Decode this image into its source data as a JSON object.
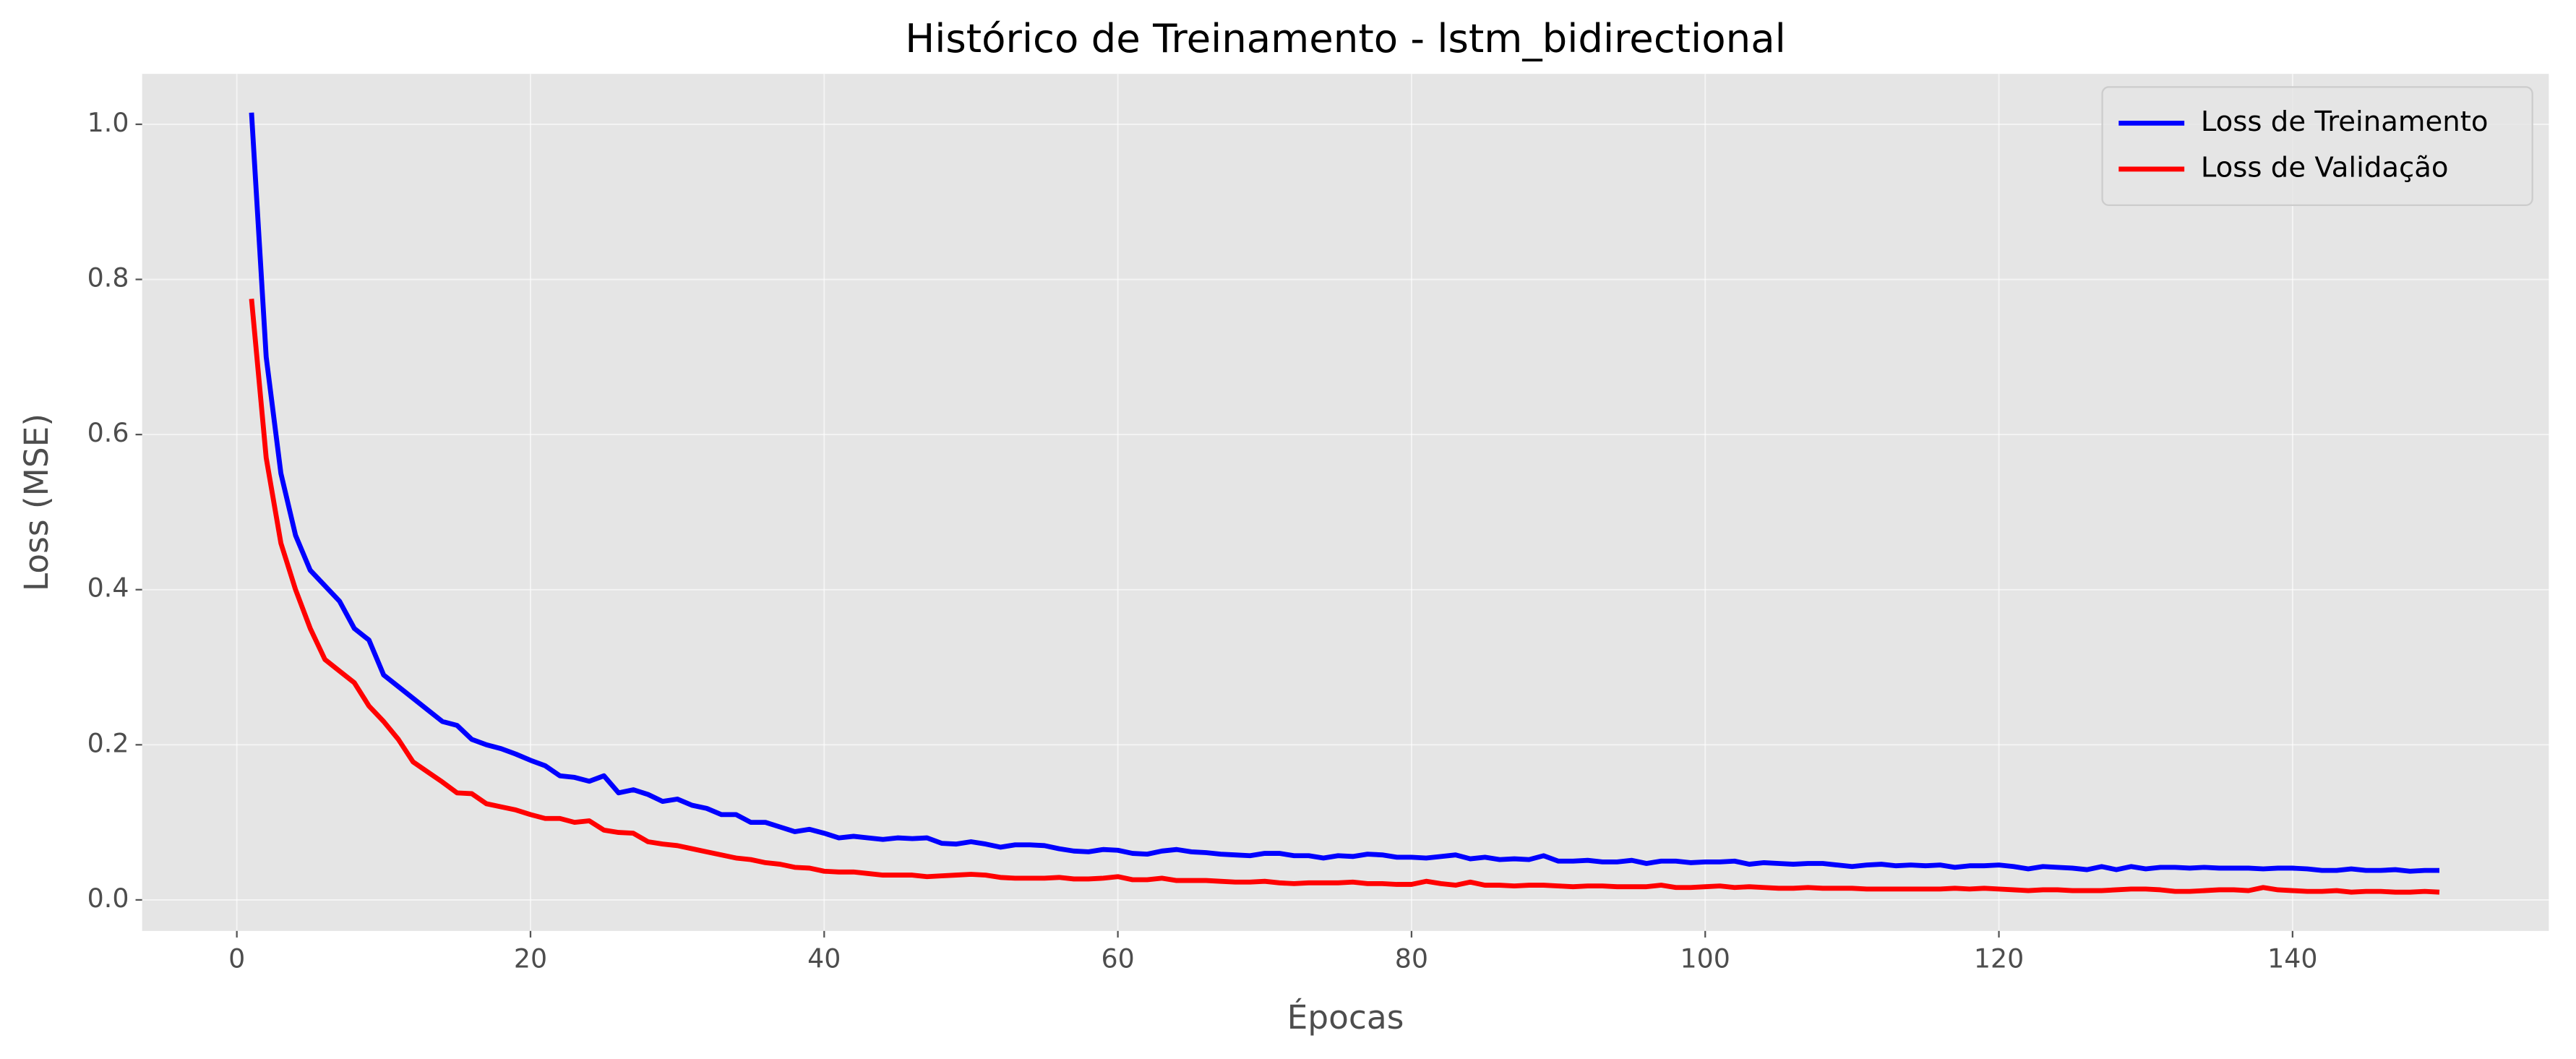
{
  "chart_data": {
    "type": "line",
    "title": "Histórico de Treinamento - lstm_bidirectional",
    "x_label": "Épocas",
    "y_label": "Loss (MSE)",
    "x": [
      1,
      2,
      3,
      4,
      5,
      6,
      7,
      8,
      9,
      10,
      11,
      12,
      13,
      14,
      15,
      16,
      17,
      18,
      19,
      20,
      21,
      22,
      23,
      24,
      25,
      26,
      27,
      28,
      29,
      30,
      31,
      32,
      33,
      34,
      35,
      36,
      37,
      38,
      39,
      40,
      41,
      42,
      43,
      44,
      45,
      46,
      47,
      48,
      49,
      50,
      51,
      52,
      53,
      54,
      55,
      56,
      57,
      58,
      59,
      60,
      61,
      62,
      63,
      64,
      65,
      66,
      67,
      68,
      69,
      70,
      71,
      72,
      73,
      74,
      75,
      76,
      77,
      78,
      79,
      80,
      81,
      82,
      83,
      84,
      85,
      86,
      87,
      88,
      89,
      90,
      91,
      92,
      93,
      94,
      95,
      96,
      97,
      98,
      99,
      100,
      101,
      102,
      103,
      104,
      105,
      106,
      107,
      108,
      109,
      110,
      111,
      112,
      113,
      114,
      115,
      116,
      117,
      118,
      119,
      120,
      121,
      122,
      123,
      124,
      125,
      126,
      127,
      128,
      129,
      130,
      131,
      132,
      133,
      134,
      135,
      136,
      137,
      138,
      139,
      140,
      141,
      142,
      143,
      144,
      145,
      146,
      147,
      148,
      149,
      150
    ],
    "series": [
      {
        "name": "Loss de Treinamento",
        "color": "#0000ff",
        "values": [
          1.015,
          0.7,
          0.55,
          0.47,
          0.425,
          0.405,
          0.385,
          0.35,
          0.335,
          0.29,
          0.275,
          0.26,
          0.245,
          0.23,
          0.225,
          0.207,
          0.2,
          0.195,
          0.188,
          0.18,
          0.173,
          0.16,
          0.158,
          0.153,
          0.16,
          0.138,
          0.142,
          0.136,
          0.127,
          0.13,
          0.122,
          0.118,
          0.11,
          0.11,
          0.1,
          0.1,
          0.094,
          0.088,
          0.091,
          0.086,
          0.08,
          0.082,
          0.08,
          0.078,
          0.08,
          0.079,
          0.08,
          0.073,
          0.072,
          0.075,
          0.072,
          0.068,
          0.071,
          0.071,
          0.07,
          0.066,
          0.063,
          0.062,
          0.065,
          0.064,
          0.06,
          0.059,
          0.063,
          0.065,
          0.062,
          0.061,
          0.059,
          0.058,
          0.057,
          0.06,
          0.06,
          0.057,
          0.057,
          0.054,
          0.057,
          0.056,
          0.059,
          0.058,
          0.055,
          0.055,
          0.054,
          0.056,
          0.058,
          0.053,
          0.055,
          0.052,
          0.053,
          0.052,
          0.057,
          0.05,
          0.05,
          0.051,
          0.049,
          0.049,
          0.051,
          0.047,
          0.05,
          0.05,
          0.048,
          0.049,
          0.049,
          0.05,
          0.046,
          0.048,
          0.047,
          0.046,
          0.047,
          0.047,
          0.045,
          0.043,
          0.045,
          0.046,
          0.044,
          0.045,
          0.044,
          0.045,
          0.042,
          0.044,
          0.044,
          0.045,
          0.043,
          0.04,
          0.043,
          0.042,
          0.041,
          0.039,
          0.043,
          0.039,
          0.043,
          0.04,
          0.042,
          0.042,
          0.041,
          0.042,
          0.041,
          0.041,
          0.041,
          0.04,
          0.041,
          0.041,
          0.04,
          0.038,
          0.038,
          0.04,
          0.038,
          0.038,
          0.039,
          0.037,
          0.038,
          0.038
        ]
      },
      {
        "name": "Loss de Validação",
        "color": "#ff0000",
        "values": [
          0.775,
          0.57,
          0.46,
          0.4,
          0.35,
          0.31,
          0.295,
          0.28,
          0.25,
          0.23,
          0.207,
          0.178,
          0.165,
          0.152,
          0.138,
          0.137,
          0.124,
          0.12,
          0.116,
          0.11,
          0.105,
          0.105,
          0.1,
          0.102,
          0.09,
          0.087,
          0.086,
          0.075,
          0.072,
          0.07,
          0.066,
          0.062,
          0.058,
          0.054,
          0.052,
          0.048,
          0.046,
          0.042,
          0.041,
          0.037,
          0.036,
          0.036,
          0.034,
          0.032,
          0.032,
          0.032,
          0.03,
          0.031,
          0.032,
          0.033,
          0.032,
          0.029,
          0.028,
          0.028,
          0.028,
          0.029,
          0.027,
          0.027,
          0.028,
          0.03,
          0.026,
          0.026,
          0.028,
          0.025,
          0.025,
          0.025,
          0.024,
          0.023,
          0.023,
          0.024,
          0.022,
          0.021,
          0.022,
          0.022,
          0.022,
          0.023,
          0.021,
          0.021,
          0.02,
          0.02,
          0.024,
          0.021,
          0.019,
          0.023,
          0.019,
          0.019,
          0.018,
          0.019,
          0.019,
          0.018,
          0.017,
          0.018,
          0.018,
          0.017,
          0.017,
          0.017,
          0.019,
          0.016,
          0.016,
          0.017,
          0.018,
          0.016,
          0.017,
          0.016,
          0.015,
          0.015,
          0.016,
          0.015,
          0.015,
          0.015,
          0.014,
          0.014,
          0.014,
          0.014,
          0.014,
          0.014,
          0.015,
          0.014,
          0.015,
          0.014,
          0.013,
          0.012,
          0.013,
          0.013,
          0.012,
          0.012,
          0.012,
          0.013,
          0.014,
          0.014,
          0.013,
          0.011,
          0.011,
          0.012,
          0.013,
          0.013,
          0.012,
          0.016,
          0.013,
          0.012,
          0.011,
          0.011,
          0.012,
          0.01,
          0.011,
          0.011,
          0.01,
          0.01,
          0.011,
          0.01
        ]
      }
    ],
    "xlim": [
      -6.45,
      157.45
    ],
    "xticks": [
      0,
      20,
      40,
      60,
      80,
      100,
      120,
      140
    ],
    "ylim": [
      -0.04,
      1.065
    ],
    "yticks": [
      {
        "value": 0,
        "label": "0.0"
      },
      0.2,
      0.4,
      0.6,
      0.8,
      {
        "value": 1,
        "label": "1.0"
      }
    ],
    "grid": true,
    "legend": "upper right"
  }
}
